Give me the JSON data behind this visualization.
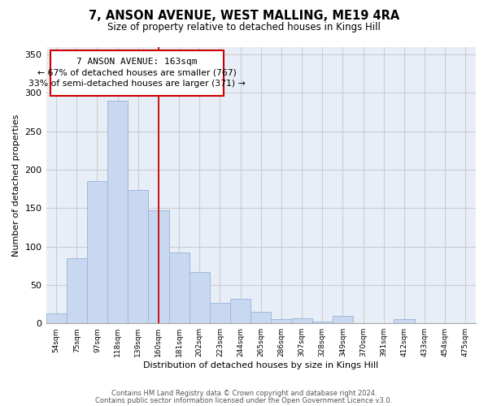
{
  "title": "7, ANSON AVENUE, WEST MALLING, ME19 4RA",
  "subtitle": "Size of property relative to detached houses in Kings Hill",
  "xlabel": "Distribution of detached houses by size in Kings Hill",
  "ylabel": "Number of detached properties",
  "bar_color": "#c8d8f0",
  "bar_edge_color": "#a0b8d8",
  "categories": [
    "54sqm",
    "75sqm",
    "97sqm",
    "118sqm",
    "139sqm",
    "160sqm",
    "181sqm",
    "202sqm",
    "223sqm",
    "244sqm",
    "265sqm",
    "286sqm",
    "307sqm",
    "328sqm",
    "349sqm",
    "370sqm",
    "391sqm",
    "412sqm",
    "433sqm",
    "454sqm",
    "475sqm"
  ],
  "values": [
    13,
    85,
    185,
    290,
    173,
    147,
    92,
    67,
    27,
    32,
    15,
    5,
    7,
    2,
    10,
    0,
    0,
    6,
    0,
    0,
    0
  ],
  "property_label": "7 ANSON AVENUE: 163sqm",
  "annotation_line1": "← 67% of detached houses are smaller (767)",
  "annotation_line2": "33% of semi-detached houses are larger (371) →",
  "vline_color": "#cc0000",
  "vline_x_index": 5.0,
  "ylim": [
    0,
    360
  ],
  "yticks": [
    0,
    50,
    100,
    150,
    200,
    250,
    300,
    350
  ],
  "footer_line1": "Contains HM Land Registry data © Crown copyright and database right 2024.",
  "footer_line2": "Contains public sector information licensed under the Open Government Licence v3.0.",
  "background_color": "#ffffff",
  "grid_color": "#cccccc",
  "plot_bg_color": "#e8eef8"
}
